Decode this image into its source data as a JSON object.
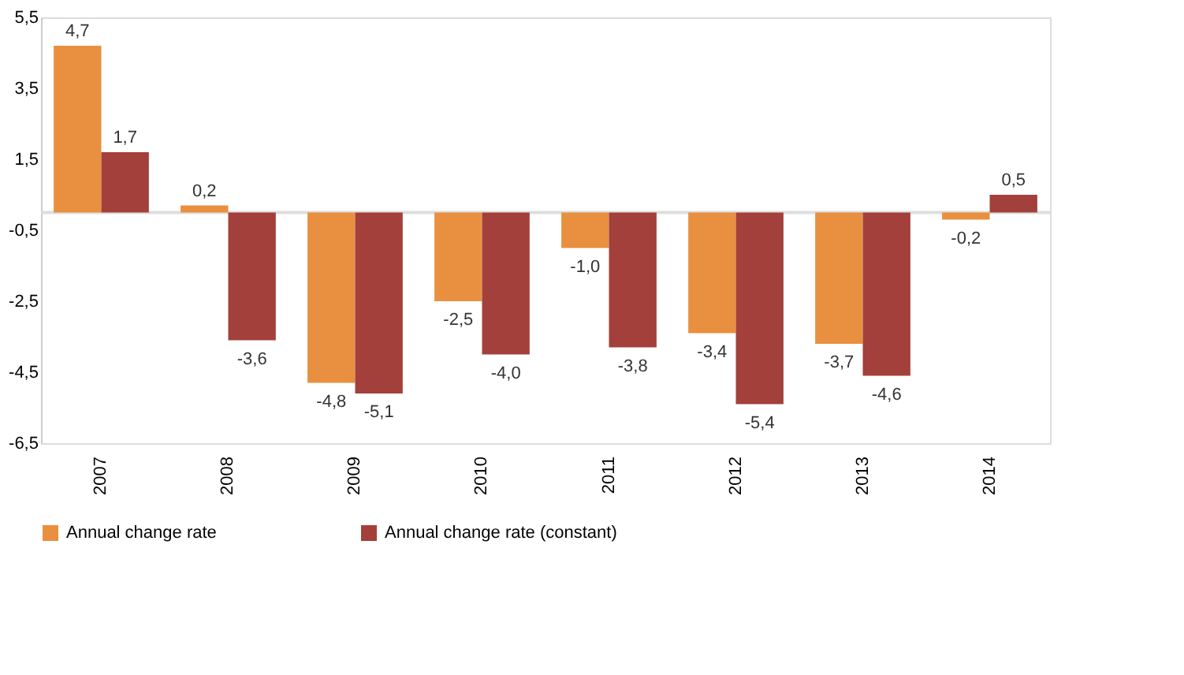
{
  "chart_data": {
    "type": "bar",
    "categories": [
      "2007",
      "2008",
      "2009",
      "2010",
      "2011",
      "2012",
      "2013",
      "2014"
    ],
    "series": [
      {
        "name": "Annual change rate",
        "color": "#e8903f",
        "values": [
          4.7,
          0.2,
          -4.8,
          -2.5,
          -1.0,
          -3.4,
          -3.7,
          -0.2
        ],
        "value_labels": [
          "4,7",
          "0,2",
          "-4,8",
          "-2,5",
          "-1,0",
          "-3,4",
          "-3,7",
          "-0,2"
        ]
      },
      {
        "name": "Annual change rate (constant)",
        "color": "#a3403b",
        "values": [
          1.7,
          -3.6,
          -5.1,
          -4.0,
          -3.8,
          -5.4,
          -4.6,
          0.5
        ],
        "value_labels": [
          "1,7",
          "-3,6",
          "-5,1",
          "-4,0",
          "-3,8",
          "-5,4",
          "-4,6",
          "0,5"
        ]
      }
    ],
    "ylim": [
      -6.5,
      5.5
    ],
    "yticks": [
      {
        "value": 5.5,
        "label": "5,5"
      },
      {
        "value": 3.5,
        "label": "3,5"
      },
      {
        "value": 1.5,
        "label": "1,5"
      },
      {
        "value": -0.5,
        "label": "-0,5"
      },
      {
        "value": -2.5,
        "label": "-2,5"
      },
      {
        "value": -4.5,
        "label": "-4,5"
      },
      {
        "value": -6.5,
        "label": "-6,5"
      }
    ],
    "grid": false,
    "legend": "bottom"
  }
}
